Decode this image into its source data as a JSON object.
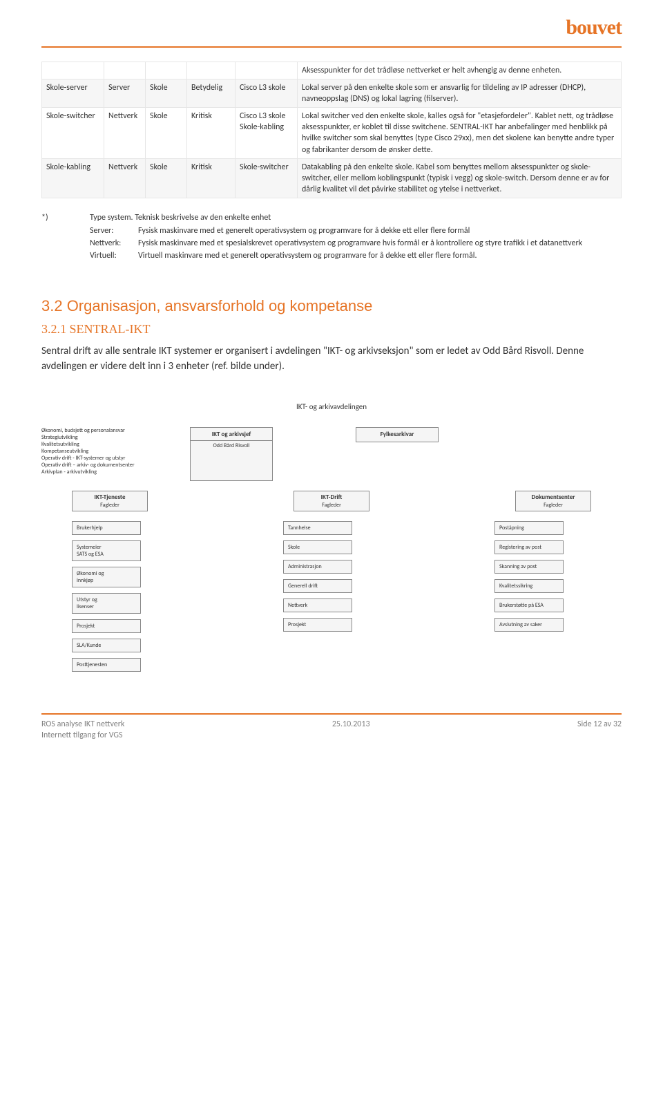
{
  "colors": {
    "accent": "#e67426",
    "text": "#333333",
    "footer_text": "#7f7f7f",
    "box_border": "#888888",
    "box_bg": "#f5f5f5",
    "table_border": "#e6e6e6",
    "shade_bg": "#f6f6f6"
  },
  "header": {
    "logo": "bouvet"
  },
  "table": {
    "rows": [
      {
        "c1": "",
        "c2": "",
        "c3": "",
        "c4": "",
        "c5": "",
        "desc": "Aksesspunkter for det trådløse nettverket er helt avhengig av denne enheten."
      },
      {
        "c1": "Skole-server",
        "c2": "Server",
        "c3": "Skole",
        "c4": "Betydelig",
        "c5": "Cisco L3 skole",
        "desc": "Lokal server på den enkelte skole som er ansvarlig for tildeling av IP adresser (DHCP), navneoppslag (DNS) og lokal lagring (filserver)."
      },
      {
        "c1": "Skole-switcher",
        "c2": "Nettverk",
        "c3": "Skole",
        "c4": "Kritisk",
        "c5": "Cisco L3 skole\nSkole-kabling",
        "desc": "Lokal switcher ved den enkelte skole, kalles også for \"etasjefordeler\". Kablet nett, og trådløse aksesspunkter, er koblet til disse switchene. SENTRAL-IKT har anbefalinger med henblikk på hvilke switcher som skal benyttes (type Cisco 29xx), men det skolene kan benytte andre typer og fabrikanter dersom de ønsker dette."
      },
      {
        "c1": "Skole-kabling",
        "c2": "Nettverk",
        "c3": "Skole",
        "c4": "Kritisk",
        "c5": "Skole-switcher",
        "desc": "Datakabling på den enkelte skole. Kabel som benyttes mellom aksesspunkter og skole-switcher, eller mellom koblingspunkt (typisk i vegg) og skole-switch. Dersom denne er av for dårlig kvalitet vil det påvirke stabilitet og ytelse i nettverket."
      }
    ]
  },
  "notes": {
    "star": "*)",
    "star_txt": "Type system.  Teknisk beskrivelse av den enkelte enhet",
    "server_label": "Server:",
    "server_txt": "Fysisk maskinvare med et generelt operativsystem og programvare for å dekke ett eller flere formål",
    "nettverk_label": "Nettverk:",
    "nettverk_txt": "Fysisk maskinvare med et spesialskrevet operativsystem og programvare hvis formål er å kontrollere og styre trafikk i et datanettverk",
    "virtuell_label": "Virtuell:",
    "virtuell_txt": "Virtuell maskinvare med et generelt operativsystem og programvare for å dekke ett eller flere formål."
  },
  "section": {
    "h2": "3.2 Organisasjon, ansvarsforhold og kompetanse",
    "h3": "3.2.1 SENTRAL-IKT",
    "body": "Sentral drift av alle sentrale IKT systemer er organisert i avdelingen \"IKT- og arkivseksjon\" som er ledet av Odd Bård Risvoll.  Denne avdelingen er videre delt inn i 3 enheter (ref. bilde under)."
  },
  "orgchart": {
    "title": "IKT- og arkivavdelingen",
    "top_left_lines": [
      "Økonomi, budsjett og personalansvar",
      "Strategiutvikling",
      "Kvalitetsutvikling",
      "Kompetanseutvikling",
      "Operativ drift - IKT-systemer og utstyr",
      "Operativ drift – arkiv- og dokumentsenter",
      "Arkivplan - arkivutvikling"
    ],
    "top_center": {
      "title": "IKT og arkivsjef",
      "sub": "Odd Bård Risvoll"
    },
    "top_right": {
      "title": "Fylkesarkivar"
    },
    "mids": [
      {
        "title": "IKT-Tjeneste",
        "sub": "Fagleder"
      },
      {
        "title": "IKT-Drift",
        "sub": "Fagleder"
      },
      {
        "title": "Dokumentsenter",
        "sub": "Fagleder"
      }
    ],
    "col1": [
      "Brukerhjelp",
      "Systemeier\nSATS og ESA",
      "Økonomi og\ninnkjøp",
      "Utstyr og\nlisenser",
      "Prosjekt",
      "SLA/Kunde",
      "Posttjenesten"
    ],
    "col2": [
      "Tannhelse",
      "Skole",
      "Administrasjon",
      "Generell drift",
      "Nettverk",
      "Prosjekt"
    ],
    "col3": [
      "Poståpning",
      "Registering av post",
      "Skanning av post",
      "Kvalitetssikring",
      "Brukerstøtte på ESA",
      "Avslutning av saker"
    ]
  },
  "footer": {
    "left1": "ROS analyse IKT nettverk",
    "left2": "Internett tilgang for VGS",
    "center": "25.10.2013",
    "right": "Side 12 av 32"
  }
}
